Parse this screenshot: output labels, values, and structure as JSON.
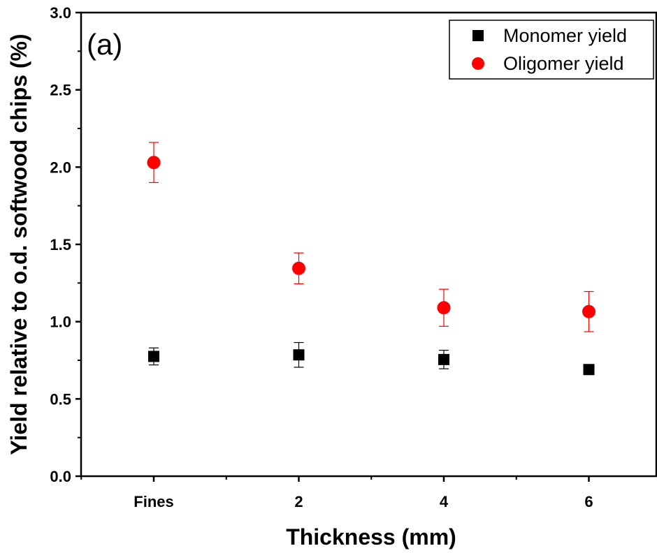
{
  "chart_data": {
    "type": "scatter",
    "panel_label": "(a)",
    "xlabel": "Thickness (mm)",
    "ylabel": "Yield relative to o.d. softwood chips (%)",
    "categories": [
      "Fines",
      "2",
      "4",
      "6"
    ],
    "ylim": [
      0,
      3.0
    ],
    "yticks": [
      "0.0",
      "0.5",
      "1.0",
      "1.5",
      "2.0",
      "2.5",
      "3.0"
    ],
    "grid": false,
    "legend_position": "top-right",
    "series": [
      {
        "name": "Monomer yield",
        "marker": "square",
        "color": "#000000",
        "values": [
          0.775,
          0.785,
          0.755,
          0.69
        ],
        "errors": [
          0.055,
          0.08,
          0.06,
          0.0
        ]
      },
      {
        "name": "Oligomer yield",
        "marker": "circle",
        "color": "#ff0000",
        "values": [
          2.03,
          1.345,
          1.09,
          1.065
        ],
        "errors": [
          0.13,
          0.1,
          0.12,
          0.13
        ]
      }
    ]
  }
}
